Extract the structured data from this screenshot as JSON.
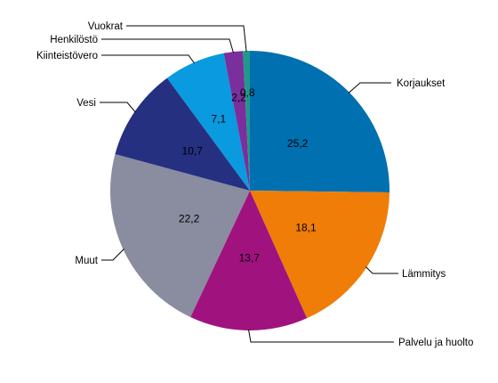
{
  "chart_data": {
    "type": "pie",
    "title": "",
    "slices": [
      {
        "label": "Korjaukset",
        "value": 25.2,
        "value_text": "25,2",
        "color": "#0070b0"
      },
      {
        "label": "Lämmitys",
        "value": 18.1,
        "value_text": "18,1",
        "color": "#ef7d08"
      },
      {
        "label": "Palvelu ja huolto",
        "value": 13.7,
        "value_text": "13,7",
        "color": "#a0137f"
      },
      {
        "label": "Muut",
        "value": 22.2,
        "value_text": "22,2",
        "color": "#8a8ca0"
      },
      {
        "label": "Vesi",
        "value": 10.7,
        "value_text": "10,7",
        "color": "#253081"
      },
      {
        "label": "Kiinteistövero",
        "value": 7.1,
        "value_text": "7,1",
        "color": "#0a9ae0"
      },
      {
        "label": "Henkilöstö",
        "value": 2.2,
        "value_text": "2,2",
        "color": "#7b2f9c"
      },
      {
        "label": "Vuokrat",
        "value": 0.8,
        "value_text": "0,8",
        "color": "#1f9a8a"
      }
    ],
    "start_angle_deg": 0,
    "direction": "clockwise",
    "legend": "none"
  }
}
